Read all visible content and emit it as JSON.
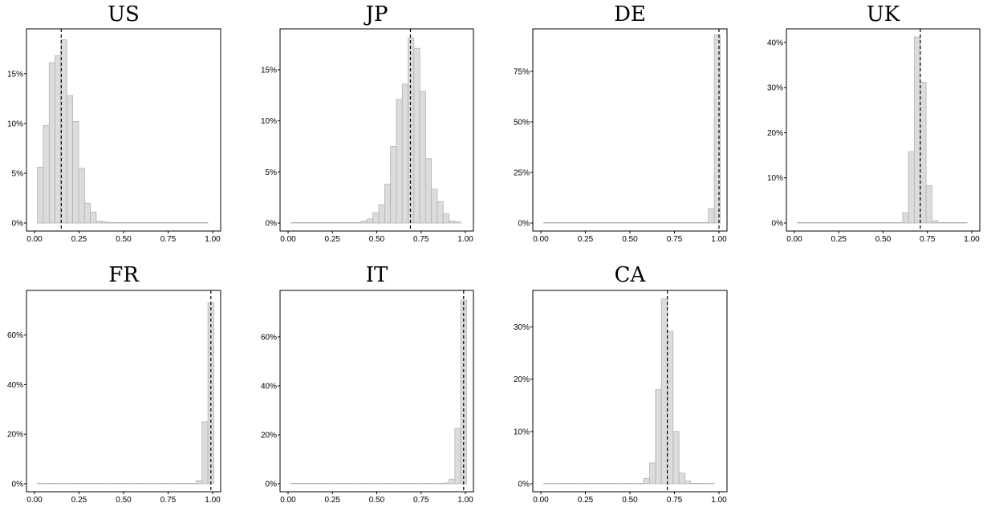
{
  "chart_data": [
    {
      "type": "bar",
      "title": "US",
      "xlim": [
        0,
        1
      ],
      "ylim": [
        0,
        0.195
      ],
      "x_ticks": [
        0,
        0.25,
        0.5,
        0.75,
        1.0
      ],
      "x_tick_labels": [
        "0.00",
        "0.25",
        "0.50",
        "0.75",
        "1.00"
      ],
      "y_ticks": [
        0,
        0.05,
        0.1,
        0.15
      ],
      "y_tick_labels": [
        "0%",
        "5%",
        "10%",
        "15%"
      ],
      "reference_line_x": 0.15,
      "bin_width": 0.033,
      "bin_centers": [
        0.033,
        0.066,
        0.099,
        0.132,
        0.165,
        0.198,
        0.231,
        0.264,
        0.297,
        0.33,
        0.363,
        0.396,
        0.429,
        0.462,
        0.495,
        0.528,
        0.561,
        0.594,
        0.627,
        0.66,
        0.693,
        0.726,
        0.759,
        0.792,
        0.825,
        0.858,
        0.891,
        0.924,
        0.957
      ],
      "values": [
        0.056,
        0.098,
        0.161,
        0.168,
        0.184,
        0.128,
        0.102,
        0.055,
        0.02,
        0.011,
        0.002,
        0.001,
        0,
        0,
        0,
        0,
        0,
        0,
        0,
        0,
        0,
        0,
        0,
        0,
        0,
        0,
        0,
        0,
        0
      ]
    },
    {
      "type": "bar",
      "title": "JP",
      "xlim": [
        0,
        1
      ],
      "ylim": [
        0,
        0.19
      ],
      "x_ticks": [
        0,
        0.25,
        0.5,
        0.75,
        1.0
      ],
      "x_tick_labels": [
        "0.00",
        "0.25",
        "0.50",
        "0.75",
        "1.00"
      ],
      "y_ticks": [
        0,
        0.05,
        0.1,
        0.15
      ],
      "y_tick_labels": [
        "0%",
        "5%",
        "10%",
        "15%"
      ],
      "reference_line_x": 0.69,
      "bin_width": 0.033,
      "bin_centers": [
        0.033,
        0.066,
        0.099,
        0.132,
        0.165,
        0.198,
        0.231,
        0.264,
        0.297,
        0.33,
        0.363,
        0.396,
        0.429,
        0.462,
        0.495,
        0.528,
        0.561,
        0.594,
        0.627,
        0.66,
        0.693,
        0.726,
        0.759,
        0.792,
        0.825,
        0.858,
        0.891,
        0.924,
        0.957
      ],
      "values": [
        0,
        0,
        0,
        0,
        0,
        0,
        0,
        0,
        0,
        0,
        0,
        0,
        0.002,
        0.004,
        0.01,
        0.018,
        0.038,
        0.075,
        0.121,
        0.136,
        0.181,
        0.171,
        0.129,
        0.063,
        0.033,
        0.021,
        0.009,
        0.002,
        0.001
      ]
    },
    {
      "type": "bar",
      "title": "DE",
      "xlim": [
        0,
        1
      ],
      "ylim": [
        0,
        0.96
      ],
      "x_ticks": [
        0,
        0.25,
        0.5,
        0.75,
        1.0
      ],
      "x_tick_labels": [
        "0.00",
        "0.25",
        "0.50",
        "0.75",
        "1.00"
      ],
      "y_ticks": [
        0,
        0.25,
        0.5,
        0.75
      ],
      "y_tick_labels": [
        "0%",
        "25%",
        "50%",
        "75%"
      ],
      "reference_line_x": 1.0,
      "bin_width": 0.033,
      "bin_centers": [
        0.033,
        0.066,
        0.099,
        0.132,
        0.165,
        0.198,
        0.231,
        0.264,
        0.297,
        0.33,
        0.363,
        0.396,
        0.429,
        0.462,
        0.495,
        0.528,
        0.561,
        0.594,
        0.627,
        0.66,
        0.693,
        0.726,
        0.759,
        0.792,
        0.825,
        0.858,
        0.891,
        0.924,
        0.957,
        0.99
      ],
      "values": [
        0,
        0,
        0,
        0,
        0,
        0,
        0,
        0,
        0,
        0,
        0,
        0,
        0,
        0,
        0,
        0,
        0,
        0,
        0,
        0,
        0,
        0,
        0,
        0,
        0,
        0,
        0,
        0,
        0.072,
        0.93
      ]
    },
    {
      "type": "bar",
      "title": "UK",
      "xlim": [
        0,
        1
      ],
      "ylim": [
        0,
        0.43
      ],
      "x_ticks": [
        0,
        0.25,
        0.5,
        0.75,
        1.0
      ],
      "x_tick_labels": [
        "0.00",
        "0.25",
        "0.50",
        "0.75",
        "1.00"
      ],
      "y_ticks": [
        0,
        0.1,
        0.2,
        0.3,
        0.4
      ],
      "y_tick_labels": [
        "0%",
        "10%",
        "20%",
        "30%",
        "40%"
      ],
      "reference_line_x": 0.71,
      "bin_width": 0.033,
      "bin_centers": [
        0.033,
        0.066,
        0.099,
        0.132,
        0.165,
        0.198,
        0.231,
        0.264,
        0.297,
        0.33,
        0.363,
        0.396,
        0.429,
        0.462,
        0.495,
        0.528,
        0.561,
        0.594,
        0.627,
        0.66,
        0.693,
        0.726,
        0.759,
        0.792,
        0.825,
        0.858,
        0.891,
        0.924,
        0.957
      ],
      "values": [
        0,
        0,
        0,
        0,
        0,
        0,
        0,
        0,
        0,
        0,
        0,
        0,
        0,
        0,
        0,
        0,
        0,
        0.001,
        0.023,
        0.158,
        0.412,
        0.312,
        0.083,
        0.005,
        0,
        0,
        0,
        0,
        0
      ]
    },
    {
      "type": "bar",
      "title": "FR",
      "xlim": [
        0,
        1
      ],
      "ylim": [
        0,
        0.78
      ],
      "x_ticks": [
        0,
        0.25,
        0.5,
        0.75,
        1.0
      ],
      "x_tick_labels": [
        "0.00",
        "0.25",
        "0.50",
        "0.75",
        "1.00"
      ],
      "y_ticks": [
        0,
        0.2,
        0.4,
        0.6
      ],
      "y_tick_labels": [
        "0%",
        "20%",
        "40%",
        "60%"
      ],
      "reference_line_x": 0.99,
      "bin_width": 0.033,
      "bin_centers": [
        0.033,
        0.066,
        0.099,
        0.132,
        0.165,
        0.198,
        0.231,
        0.264,
        0.297,
        0.33,
        0.363,
        0.396,
        0.429,
        0.462,
        0.495,
        0.528,
        0.561,
        0.594,
        0.627,
        0.66,
        0.693,
        0.726,
        0.759,
        0.792,
        0.825,
        0.858,
        0.891,
        0.924,
        0.957,
        0.99
      ],
      "values": [
        0,
        0,
        0,
        0,
        0,
        0,
        0,
        0,
        0,
        0,
        0,
        0,
        0,
        0,
        0,
        0,
        0,
        0,
        0,
        0,
        0,
        0,
        0,
        0,
        0,
        0,
        0.002,
        0.012,
        0.25,
        0.73
      ]
    },
    {
      "type": "bar",
      "title": "IT",
      "xlim": [
        0,
        1
      ],
      "ylim": [
        0,
        0.79
      ],
      "x_ticks": [
        0,
        0.25,
        0.5,
        0.75,
        1.0
      ],
      "x_tick_labels": [
        "0.00",
        "0.25",
        "0.50",
        "0.75",
        "1.00"
      ],
      "y_ticks": [
        0,
        0.2,
        0.4,
        0.6
      ],
      "y_tick_labels": [
        "0%",
        "20%",
        "40%",
        "60%"
      ],
      "reference_line_x": 0.99,
      "bin_width": 0.033,
      "bin_centers": [
        0.033,
        0.066,
        0.099,
        0.132,
        0.165,
        0.198,
        0.231,
        0.264,
        0.297,
        0.33,
        0.363,
        0.396,
        0.429,
        0.462,
        0.495,
        0.528,
        0.561,
        0.594,
        0.627,
        0.66,
        0.693,
        0.726,
        0.759,
        0.792,
        0.825,
        0.858,
        0.891,
        0.924,
        0.957,
        0.99
      ],
      "values": [
        0,
        0,
        0,
        0,
        0,
        0,
        0,
        0,
        0,
        0,
        0,
        0,
        0,
        0,
        0,
        0,
        0,
        0,
        0,
        0,
        0,
        0,
        0,
        0,
        0,
        0,
        0.003,
        0.018,
        0.226,
        0.75
      ]
    },
    {
      "type": "bar",
      "title": "CA",
      "xlim": [
        0,
        1
      ],
      "ylim": [
        0,
        0.37
      ],
      "x_ticks": [
        0,
        0.25,
        0.5,
        0.75,
        1.0
      ],
      "x_tick_labels": [
        "0.00",
        "0.25",
        "0.50",
        "0.75",
        "1.00"
      ],
      "y_ticks": [
        0,
        0.1,
        0.2,
        0.3
      ],
      "y_tick_labels": [
        "0%",
        "10%",
        "20%",
        "30%"
      ],
      "reference_line_x": 0.71,
      "bin_width": 0.033,
      "bin_centers": [
        0.033,
        0.066,
        0.099,
        0.132,
        0.165,
        0.198,
        0.231,
        0.264,
        0.297,
        0.33,
        0.363,
        0.396,
        0.429,
        0.462,
        0.495,
        0.528,
        0.561,
        0.594,
        0.627,
        0.66,
        0.693,
        0.726,
        0.759,
        0.792,
        0.825,
        0.858,
        0.891,
        0.924,
        0.957
      ],
      "values": [
        0,
        0,
        0,
        0,
        0,
        0,
        0,
        0,
        0,
        0,
        0,
        0,
        0,
        0,
        0,
        0,
        0.001,
        0.01,
        0.04,
        0.18,
        0.354,
        0.292,
        0.1,
        0.02,
        0.005,
        0,
        0,
        0,
        0
      ]
    }
  ]
}
